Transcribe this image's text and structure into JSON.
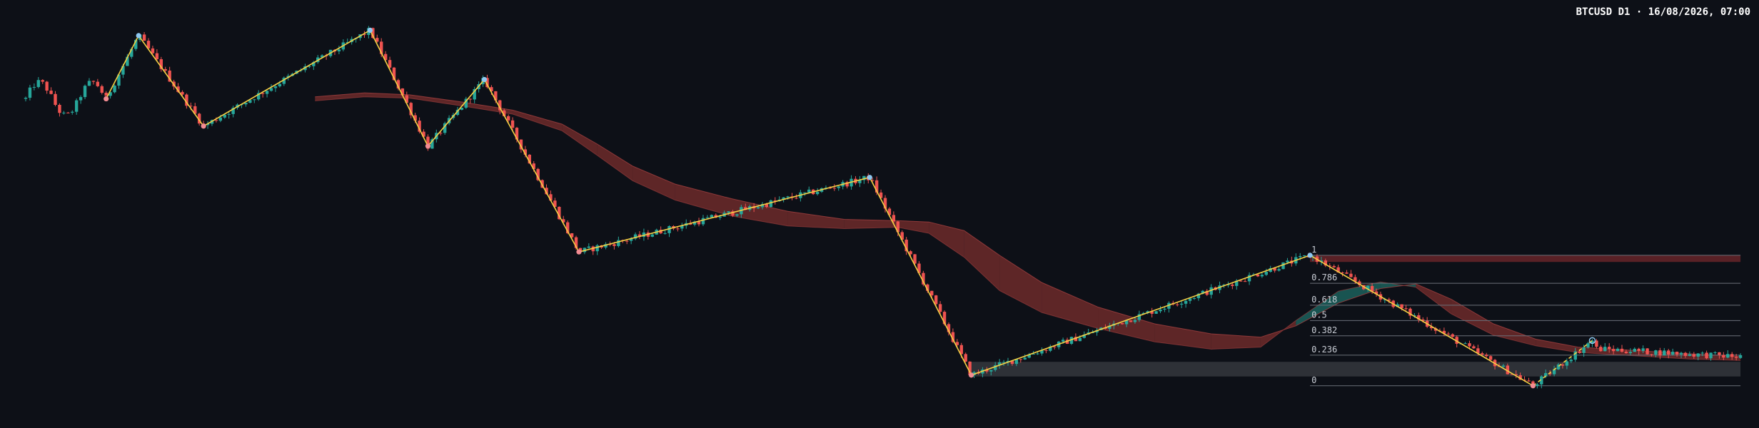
{
  "header": {
    "title": "BTCUSD D1 · 16/08/2026, 07:00"
  },
  "colors": {
    "background": "#0d1017",
    "bull": "#26a69a",
    "bear": "#ef5350",
    "zigzag": "#f5d044",
    "swing_high": "#8ec8f0",
    "swing_low": "#f28b92",
    "cloud_bear": "#7a2e2e",
    "cloud_bull": "#1e6b66",
    "fib_line": "#6b6f78",
    "zone_grey": "#4a4c52",
    "zone_red": "#7a2a2e"
  },
  "chart_data": {
    "type": "candlestick",
    "symbol": "BTCUSD",
    "timeframe": "D1",
    "title": "BTCUSD D1 · 16/08/2026, 07:00",
    "xlabel": "",
    "ylabel": "",
    "grid": false,
    "legend": "none",
    "y_units": "price (relative, axis not shown)",
    "ylim": [
      0,
      600
    ],
    "x_range": [
      0,
      1215
    ],
    "zigzag": [
      {
        "bar": 57,
        "price": 473,
        "kind": "low"
      },
      {
        "bar": 80,
        "price": 568,
        "kind": "high"
      },
      {
        "bar": 126,
        "price": 432,
        "kind": "low"
      },
      {
        "bar": 244,
        "price": 576,
        "kind": "high"
      },
      {
        "bar": 285,
        "price": 402,
        "kind": "low"
      },
      {
        "bar": 325,
        "price": 502,
        "kind": "high"
      },
      {
        "bar": 392,
        "price": 243,
        "kind": "low"
      },
      {
        "bar": 598,
        "price": 355,
        "kind": "high"
      },
      {
        "bar": 670,
        "price": 58,
        "kind": "low"
      },
      {
        "bar": 910,
        "price": 238,
        "kind": "high"
      },
      {
        "bar": 1068,
        "price": 42,
        "kind": "low"
      }
    ],
    "projection": [
      {
        "bar": 1068,
        "price": 42
      },
      {
        "bar": 1110,
        "price": 110
      }
    ],
    "fibonacci": {
      "from_bar": 910,
      "to_bar": 1215,
      "levels": [
        {
          "label": "1",
          "price": 238
        },
        {
          "label": "0.786",
          "price": 196
        },
        {
          "label": "0.618",
          "price": 163
        },
        {
          "label": "0.5",
          "price": 140
        },
        {
          "label": "0.382",
          "price": 117
        },
        {
          "label": "0.236",
          "price": 88
        },
        {
          "label": "0",
          "price": 42
        }
      ]
    },
    "zones": [
      {
        "kind": "grey",
        "from_bar": 670,
        "to_bar": 1215,
        "top": 78,
        "bottom": 56
      },
      {
        "kind": "red",
        "from_bar": 910,
        "to_bar": 1215,
        "top": 238,
        "bottom": 228
      }
    ],
    "cloud_start_bar": 205,
    "cloud_fast": [
      [
        205,
        476
      ],
      [
        240,
        482
      ],
      [
        272,
        479
      ],
      [
        310,
        468
      ],
      [
        345,
        456
      ],
      [
        380,
        435
      ],
      [
        405,
        405
      ],
      [
        430,
        372
      ],
      [
        460,
        345
      ],
      [
        500,
        323
      ],
      [
        540,
        304
      ],
      [
        580,
        292
      ],
      [
        618,
        290
      ],
      [
        640,
        288
      ],
      [
        665,
        275
      ],
      [
        690,
        238
      ],
      [
        720,
        197
      ],
      [
        760,
        160
      ],
      [
        800,
        135
      ],
      [
        840,
        120
      ],
      [
        875,
        115
      ],
      [
        900,
        132
      ],
      [
        930,
        166
      ],
      [
        960,
        188
      ],
      [
        985,
        195
      ],
      [
        1010,
        172
      ],
      [
        1040,
        135
      ],
      [
        1070,
        112
      ],
      [
        1100,
        100
      ],
      [
        1140,
        95
      ],
      [
        1180,
        90
      ],
      [
        1215,
        86
      ]
    ],
    "cloud_slow": [
      [
        205,
        470
      ],
      [
        240,
        476
      ],
      [
        272,
        474
      ],
      [
        310,
        462
      ],
      [
        345,
        450
      ],
      [
        380,
        425
      ],
      [
        405,
        388
      ],
      [
        430,
        350
      ],
      [
        460,
        321
      ],
      [
        500,
        297
      ],
      [
        540,
        282
      ],
      [
        580,
        278
      ],
      [
        618,
        280
      ],
      [
        640,
        271
      ],
      [
        665,
        235
      ],
      [
        690,
        185
      ],
      [
        720,
        152
      ],
      [
        760,
        128
      ],
      [
        800,
        108
      ],
      [
        840,
        97
      ],
      [
        875,
        100
      ],
      [
        900,
        140
      ],
      [
        930,
        184
      ],
      [
        960,
        198
      ],
      [
        985,
        190
      ],
      [
        1010,
        150
      ],
      [
        1040,
        118
      ],
      [
        1070,
        102
      ],
      [
        1100,
        92
      ],
      [
        1140,
        87
      ],
      [
        1180,
        82
      ],
      [
        1215,
        80
      ]
    ],
    "candles_generated_from": "zigzag swing sequence with seeded noise (1 bar per 1.05 px)"
  }
}
